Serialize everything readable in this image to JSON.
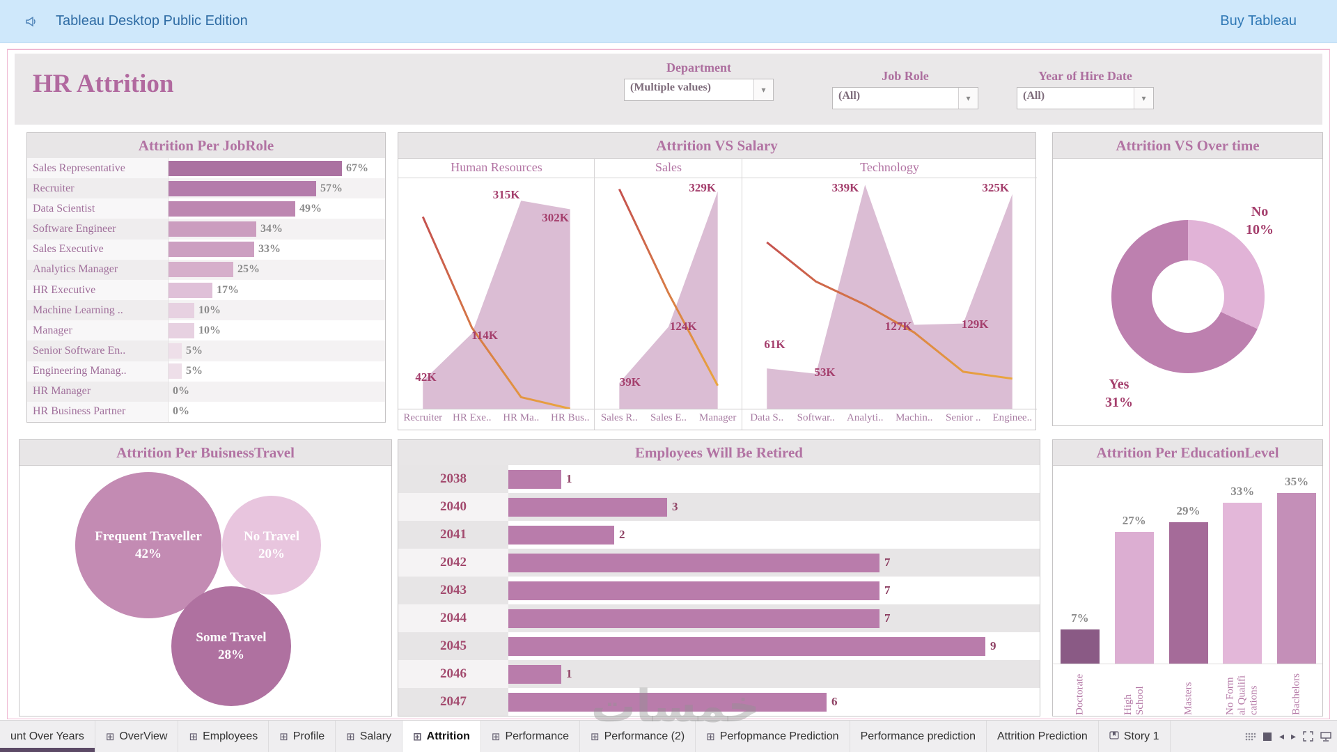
{
  "top_bar": {
    "app_title": "Tableau Desktop Public Edition",
    "buy_label": "Buy Tableau"
  },
  "header": {
    "title": "HR Attrition",
    "filters": [
      {
        "label": "Department",
        "value": "(Multiple values)"
      },
      {
        "label": "Job Role",
        "value": "(All)"
      },
      {
        "label": "Year of Hire Date",
        "value": "(All)"
      }
    ]
  },
  "watermark": "خمسات",
  "colors": {
    "accent_mauve": "#b273a3",
    "bar_main": "#b97cab",
    "donut_no": "#e1b3d7",
    "donut_yes": "#bd80af",
    "area_fill": "#d7b6cf",
    "line_start": "#c5514e",
    "line_end": "#eaa63e"
  },
  "chart_data": [
    {
      "type": "bar",
      "orientation": "horizontal",
      "title": "Attrition Per JobRole",
      "unit": "%",
      "categories": [
        "Sales Representative",
        "Recruiter",
        "Data Scientist",
        "Software Engineer",
        "Sales Executive",
        "Analytics Manager",
        "HR Executive",
        "Machine Learning ..",
        "Manager",
        "Senior Software En..",
        "Engineering Manag..",
        "HR Manager",
        "HR Business Partner"
      ],
      "values": [
        67,
        57,
        49,
        34,
        33,
        25,
        17,
        10,
        10,
        5,
        5,
        0,
        0
      ],
      "colors": [
        "#ab72a1",
        "#b47cab",
        "#bd87b1",
        "#cb9dbf",
        "#cc9fc1",
        "#d6afcb",
        "#dfc0d8",
        "#e7d1e1",
        "#e7d1e1",
        "#eedfe9",
        "#eedfe9",
        "",
        ""
      ]
    },
    {
      "type": "area",
      "title": "Attrition VS Salary",
      "ylim_k": [
        0,
        350
      ],
      "panels": [
        {
          "name": "Human Resources",
          "categories": [
            "Recruiter",
            "HR Exe..",
            "HR Ma..",
            "HR Bus.."
          ],
          "salary_values_k": [
            42,
            114,
            315,
            302
          ],
          "labels": [
            "42K",
            "114K",
            "315K",
            "302K"
          ],
          "label_pos_pct": [
            [
              14,
              84
            ],
            [
              44,
              66
            ],
            [
              55,
              5
            ],
            [
              80,
              15
            ]
          ],
          "attrition_line_y_pct": [
            17,
            65,
            95,
            100
          ]
        },
        {
          "name": "Sales",
          "categories": [
            "Sales R..",
            "Sales E..",
            "Manager"
          ],
          "salary_values_k": [
            39,
            124,
            329
          ],
          "labels": [
            "39K",
            "124K",
            "329K"
          ],
          "label_pos_pct": [
            [
              24,
              86
            ],
            [
              60,
              62
            ],
            [
              73,
              2
            ]
          ],
          "attrition_line_y_pct": [
            5,
            50,
            90
          ]
        },
        {
          "name": "Technology",
          "categories": [
            "Data S..",
            "Softwar..",
            "Analyti..",
            "Machin..",
            "Senior ..",
            "Enginee.."
          ],
          "salary_values_k": [
            61,
            53,
            339,
            127,
            129,
            325
          ],
          "labels": [
            "61K",
            "53K",
            "339K",
            "127K",
            "129K",
            "325K"
          ],
          "label_pos_pct": [
            [
              11,
              70
            ],
            [
              28,
              82
            ],
            [
              35,
              2
            ],
            [
              53,
              62
            ],
            [
              79,
              61
            ],
            [
              86,
              2
            ]
          ],
          "attrition_line_y_pct": [
            28,
            45,
            55,
            67,
            84,
            87
          ]
        }
      ]
    },
    {
      "type": "pie",
      "title": "Attrition VS Over time",
      "slices": [
        {
          "label": "No",
          "value_pct": 10,
          "display": "10%",
          "color": "#e1b3d7",
          "sweep_deg": 115
        },
        {
          "label": "Yes",
          "value_pct": 31,
          "display": "31%",
          "color": "#bd80af",
          "sweep_deg": 245
        }
      ]
    },
    {
      "type": "bubble",
      "title": "Attrition Per BuisnessTravel",
      "bubbles": [
        {
          "label": "Frequent Traveller",
          "value_pct": 42,
          "display": "42%",
          "color": "#c38bb3"
        },
        {
          "label": "No Travel",
          "value_pct": 20,
          "display": "20%",
          "color": "#e8c5de"
        },
        {
          "label": "Some Travel",
          "value_pct": 28,
          "display": "28%",
          "color": "#af71a0"
        }
      ]
    },
    {
      "type": "bar",
      "orientation": "horizontal",
      "title": "Employees Will Be Retired",
      "categories": [
        "2038",
        "2040",
        "2041",
        "2042",
        "2043",
        "2044",
        "2045",
        "2046",
        "2047"
      ],
      "values": [
        1,
        3,
        2,
        7,
        7,
        7,
        9,
        1,
        6
      ],
      "xmax": 9,
      "bar_color": "#b97cab"
    },
    {
      "type": "bar",
      "orientation": "vertical",
      "title": "Attrition Per EducationLevel",
      "unit": "%",
      "categories": [
        "Doctorate",
        "High\nSchool",
        "Masters",
        "No Form\nal Qualifi\ncations",
        "Bachelors"
      ],
      "values": [
        7,
        27,
        29,
        33,
        35
      ],
      "colors": [
        "#8a5a85",
        "#dcaed2",
        "#a56b99",
        "#e3b7d9",
        "#c48fb8"
      ]
    }
  ],
  "tabs": {
    "items": [
      {
        "label": "unt Over Years",
        "icon": "none",
        "active": false,
        "indicator": true
      },
      {
        "label": "OverView",
        "icon": "sheet",
        "active": false
      },
      {
        "label": "Employees",
        "icon": "sheet",
        "active": false
      },
      {
        "label": "Profile",
        "icon": "sheet",
        "active": false
      },
      {
        "label": "Salary",
        "icon": "sheet",
        "active": false
      },
      {
        "label": "Attrition",
        "icon": "sheet",
        "active": true
      },
      {
        "label": "Performance",
        "icon": "sheet",
        "active": false
      },
      {
        "label": "Performance (2)",
        "icon": "sheet",
        "active": false
      },
      {
        "label": "Perfopmance Prediction",
        "icon": "sheet",
        "active": false
      },
      {
        "label": "Performance prediction",
        "icon": "none",
        "active": false
      },
      {
        "label": "Attrition Prediction",
        "icon": "none",
        "active": false
      },
      {
        "label": "Story 1",
        "icon": "story",
        "active": false
      }
    ]
  }
}
